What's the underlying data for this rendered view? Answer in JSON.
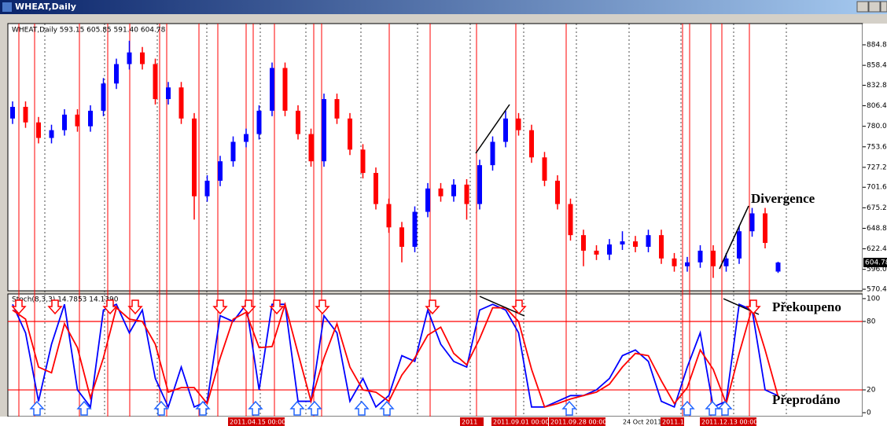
{
  "window_title": "WHEAT,Daily",
  "chart_data": [
    {
      "type": "candlestick",
      "title": "WHEAT,Daily  593.15 605.85 591.40 604.78",
      "open": [
        790,
        805,
        785,
        765,
        775,
        795,
        780,
        800,
        835,
        860,
        875,
        860,
        815,
        830,
        790,
        690,
        710,
        735,
        760,
        770,
        800,
        855,
        800,
        770,
        735,
        815,
        790,
        750,
        720,
        680,
        650,
        625,
        670,
        700,
        690,
        705,
        680,
        730,
        760,
        790,
        775,
        740,
        710,
        680,
        640,
        620,
        615,
        628,
        632,
        625,
        640,
        610,
        600,
        605,
        620,
        600,
        610,
        645,
        668,
        593.15
      ],
      "high": [
        812,
        812,
        792,
        782,
        802,
        802,
        807,
        842,
        867,
        890,
        882,
        867,
        837,
        837,
        797,
        717,
        742,
        767,
        777,
        807,
        862,
        862,
        807,
        777,
        822,
        822,
        797,
        757,
        727,
        687,
        657,
        677,
        707,
        707,
        712,
        712,
        737,
        767,
        800,
        797,
        782,
        747,
        717,
        687,
        647,
        627,
        635,
        645,
        639,
        647,
        647,
        617,
        612,
        627,
        627,
        617,
        652,
        675,
        675,
        605.85
      ],
      "low": [
        783,
        778,
        758,
        758,
        768,
        773,
        773,
        793,
        828,
        853,
        853,
        808,
        808,
        783,
        660,
        683,
        703,
        728,
        753,
        763,
        793,
        793,
        763,
        728,
        728,
        783,
        743,
        713,
        673,
        643,
        605,
        618,
        663,
        683,
        683,
        660,
        673,
        723,
        753,
        768,
        733,
        703,
        673,
        633,
        600,
        608,
        608,
        621,
        618,
        618,
        603,
        593,
        593,
        598,
        585,
        593,
        603,
        638,
        623,
        591.4
      ],
      "close": [
        805,
        785,
        765,
        775,
        795,
        780,
        800,
        835,
        860,
        875,
        860,
        815,
        830,
        790,
        690,
        710,
        735,
        760,
        770,
        800,
        855,
        800,
        770,
        735,
        815,
        790,
        750,
        720,
        680,
        650,
        625,
        670,
        700,
        690,
        705,
        680,
        730,
        760,
        790,
        775,
        740,
        710,
        680,
        640,
        620,
        615,
        628,
        632,
        625,
        640,
        610,
        600,
        605,
        620,
        600,
        610,
        645,
        668,
        630,
        604.78
      ],
      "up_color": "#0000ff",
      "down_color": "#ff0000",
      "last": 604.78,
      "ylim": [
        568.4,
        912.1
      ],
      "yticks": [
        {
          "value": 884.8,
          "label": "884.80"
        },
        {
          "value": 858.4,
          "label": "858.40"
        },
        {
          "value": 832.8,
          "label": "832.80"
        },
        {
          "value": 806.4,
          "label": "806.40"
        },
        {
          "value": 780,
          "label": "780.00"
        },
        {
          "value": 753.6,
          "label": "753.60"
        },
        {
          "value": 727.2,
          "label": "727.20"
        },
        {
          "value": 701.6,
          "label": "701.60"
        },
        {
          "value": 675.2,
          "label": "675.20"
        },
        {
          "value": 648.8,
          "label": "648.80"
        },
        {
          "value": 622.4,
          "label": "622.40"
        },
        {
          "value": 596,
          "label": "596.00"
        },
        {
          "value": 570.4,
          "label": "570.40"
        }
      ],
      "annotation": "Divergence"
    },
    {
      "type": "line",
      "title": "Stoch(8,3,3) 14.7853 14.1390",
      "series": [
        {
          "color": "#0000ff",
          "values": [
            95,
            70,
            10,
            60,
            95,
            20,
            5,
            90,
            95,
            70,
            90,
            30,
            5,
            40,
            5,
            10,
            85,
            80,
            95,
            20,
            95,
            95,
            10,
            10,
            85,
            70,
            10,
            30,
            5,
            15,
            50,
            45,
            90,
            60,
            45,
            40,
            90,
            95,
            90,
            70,
            5,
            5,
            10,
            15,
            15,
            20,
            30,
            50,
            55,
            45,
            10,
            5,
            40,
            70,
            5,
            10,
            95,
            90,
            20,
            14.7853
          ]
        },
        {
          "color": "#ff0000",
          "values": [
            90,
            82,
            40,
            35,
            78,
            57,
            13,
            48,
            92,
            82,
            80,
            60,
            18,
            22,
            22,
            8,
            48,
            82,
            88,
            57,
            58,
            95,
            52,
            10,
            48,
            78,
            40,
            20,
            18,
            10,
            33,
            48,
            68,
            75,
            52,
            42,
            65,
            92,
            92,
            80,
            38,
            5,
            8,
            12,
            15,
            18,
            25,
            40,
            52,
            50,
            28,
            8,
            22,
            55,
            38,
            8,
            52,
            92,
            55,
            14.139
          ]
        }
      ],
      "levels": [
        80,
        20
      ],
      "ylim": [
        -3.4,
        104.1
      ],
      "yticks": [
        0,
        20,
        80,
        100
      ],
      "annotations": [
        "Překoupeno",
        "Přeprodáno"
      ]
    }
  ],
  "x_labels": [
    "2011.04.15 00:00",
    "2011",
    "2011.09.01 00:00",
    "2011.09.28 00:00",
    "24 Oct 2011",
    "2011.11",
    "2011.12.13 00:00"
  ]
}
